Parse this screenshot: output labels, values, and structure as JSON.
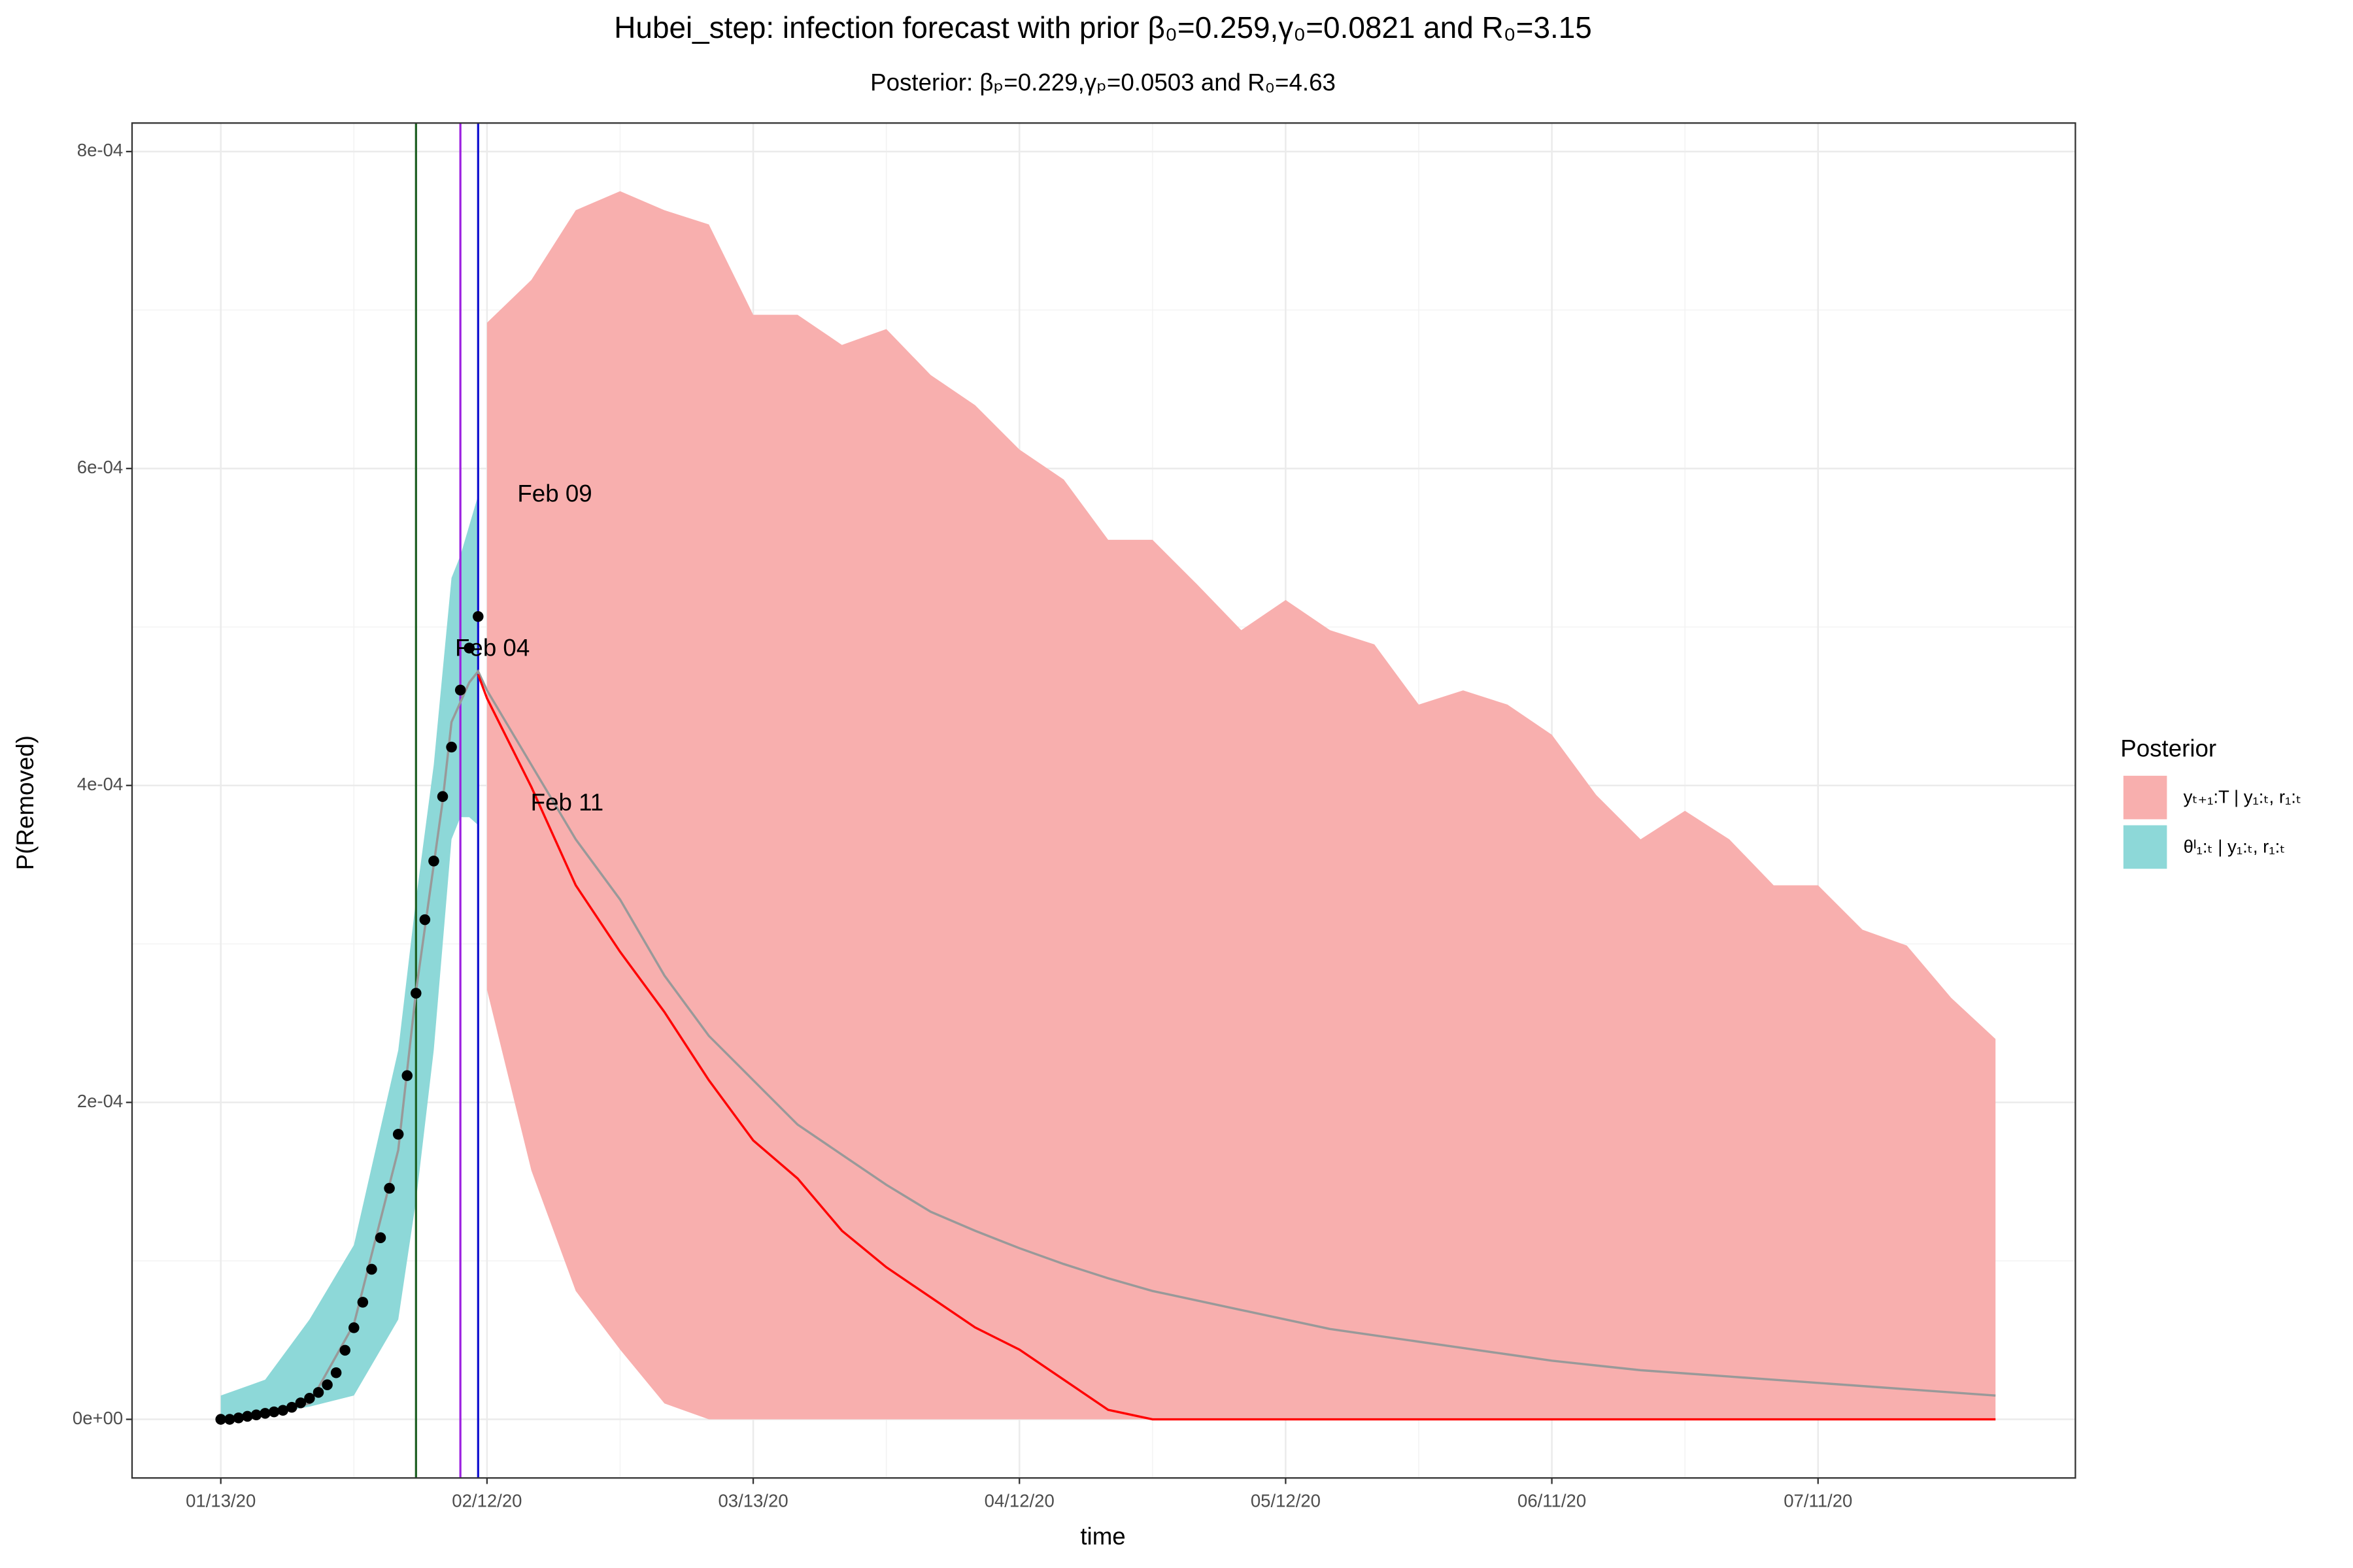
{
  "chart_data": {
    "type": "line",
    "title": "Hubei_step: infection forecast with prior β₀=0.259,γ₀=0.0821 and R₀=3.15",
    "subtitle": "Posterior: βₚ=0.229,γₚ=0.0503 and R₀=4.63",
    "xlabel": "time",
    "ylabel": "P(Removed)",
    "legend_title": "Posterior",
    "legend_position": "right",
    "grid": true,
    "xlim": [
      "2020-01-03",
      "2020-08-09"
    ],
    "ylim": [
      -3.7e-05,
      0.000818
    ],
    "xticks": [
      {
        "value": "2020-01-13",
        "label": "01/13/20"
      },
      {
        "value": "2020-02-12",
        "label": "02/12/20"
      },
      {
        "value": "2020-03-13",
        "label": "03/13/20"
      },
      {
        "value": "2020-04-12",
        "label": "04/12/20"
      },
      {
        "value": "2020-05-12",
        "label": "05/12/20"
      },
      {
        "value": "2020-06-11",
        "label": "06/11/20"
      },
      {
        "value": "2020-07-11",
        "label": "07/11/20"
      }
    ],
    "yticks": [
      {
        "value": 0,
        "label": "0e+00"
      },
      {
        "value": 0.0002,
        "label": "2e-04"
      },
      {
        "value": 0.0004,
        "label": "4e-04"
      },
      {
        "value": 0.0006,
        "label": "6e-04"
      },
      {
        "value": 0.0008,
        "label": "8e-04"
      }
    ],
    "vlines": [
      {
        "x": "2020-02-04",
        "label": "Feb 04",
        "color": "#1b5e20"
      },
      {
        "x": "2020-02-09",
        "label": "Feb 09",
        "color": "#9b1fe0"
      },
      {
        "x": "2020-02-11",
        "label": "Feb 11",
        "color": "#1010d0"
      }
    ],
    "series": [
      {
        "name": "yₜ₊₁:T | y₁:ₜ, r₁:ₜ",
        "kind": "ribbon",
        "color": "#F8AFAE",
        "x": [
          "2020-02-12",
          "2020-02-17",
          "2020-02-22",
          "2020-02-27",
          "2020-03-03",
          "2020-03-08",
          "2020-03-13",
          "2020-03-18",
          "2020-03-23",
          "2020-03-28",
          "2020-04-02",
          "2020-04-07",
          "2020-04-12",
          "2020-04-17",
          "2020-04-22",
          "2020-04-27",
          "2020-05-02",
          "2020-05-07",
          "2020-05-12",
          "2020-05-17",
          "2020-05-22",
          "2020-05-27",
          "2020-06-01",
          "2020-06-06",
          "2020-06-11",
          "2020-06-16",
          "2020-06-21",
          "2020-06-26",
          "2020-07-01",
          "2020-07-06",
          "2020-07-11",
          "2020-07-16",
          "2020-07-21",
          "2020-07-26",
          "2020-07-31"
        ],
        "lower": [
          0.000271,
          0.000157,
          8.1e-05,
          4.4e-05,
          1e-05,
          0,
          0,
          0,
          0,
          0,
          0,
          0,
          0,
          0,
          0,
          0,
          0,
          0,
          0,
          0,
          0,
          0,
          0,
          0,
          0,
          0,
          0,
          0,
          0,
          0,
          0,
          0,
          0,
          0,
          0
        ],
        "upper": [
          0.000692,
          0.000719,
          0.000763,
          0.000775,
          0.000763,
          0.000754,
          0.000697,
          0.000697,
          0.000678,
          0.000688,
          0.000659,
          0.00064,
          0.000612,
          0.000593,
          0.000555,
          0.000555,
          0.000527,
          0.000498,
          0.000517,
          0.000498,
          0.000489,
          0.000451,
          0.00046,
          0.000451,
          0.000432,
          0.000394,
          0.000366,
          0.000384,
          0.000366,
          0.000337,
          0.000337,
          0.000309,
          0.000299,
          0.000266,
          0.00024
        ]
      },
      {
        "name": "θᴵ₁:ₜ | y₁:ₜ, r₁:ₜ",
        "kind": "ribbon",
        "color": "#8DD8D8",
        "x": [
          "2020-01-13",
          "2020-01-18",
          "2020-01-23",
          "2020-01-28",
          "2020-02-02",
          "2020-02-04",
          "2020-02-06",
          "2020-02-08",
          "2020-02-09",
          "2020-02-10",
          "2020-02-11"
        ],
        "lower": [
          0,
          3e-06,
          8e-06,
          1.5e-05,
          6.3e-05,
          0.000138,
          0.000233,
          0.000366,
          0.00038,
          0.00038,
          0.000375
        ],
        "upper": [
          1.5e-05,
          2.5e-05,
          6.3e-05,
          0.00011,
          0.000233,
          0.000328,
          0.000413,
          0.000531,
          0.000545,
          0.000564,
          0.000583
        ]
      },
      {
        "kind": "line",
        "color": "#999999",
        "x": [
          "2020-01-13",
          "2020-01-18",
          "2020-01-23",
          "2020-01-28",
          "2020-02-02",
          "2020-02-04",
          "2020-02-07",
          "2020-02-08",
          "2020-02-10",
          "2020-02-11",
          "2020-02-12",
          "2020-02-17",
          "2020-02-22",
          "2020-02-27",
          "2020-03-03",
          "2020-03-08",
          "2020-03-13",
          "2020-03-18",
          "2020-03-23",
          "2020-03-28",
          "2020-04-02",
          "2020-04-07",
          "2020-04-12",
          "2020-04-17",
          "2020-04-22",
          "2020-04-27",
          "2020-05-02",
          "2020-05-07",
          "2020-05-12",
          "2020-05-17",
          "2020-05-22",
          "2020-05-27",
          "2020-06-01",
          "2020-06-06",
          "2020-06-11",
          "2020-06-16",
          "2020-06-21",
          "2020-06-26",
          "2020-07-01",
          "2020-07-06",
          "2020-07-11",
          "2020-07-16",
          "2020-07-21",
          "2020-07-26",
          "2020-07-31"
        ],
        "values": [
          0,
          3e-06,
          1e-05,
          6e-05,
          0.00017,
          0.00027,
          0.00039,
          0.00044,
          0.000465,
          0.000472,
          0.00046,
          0.000413,
          0.000366,
          0.000328,
          0.00028,
          0.000242,
          0.000214,
          0.000186,
          0.000167,
          0.000148,
          0.000131,
          0.000119,
          0.000108,
          9.8e-05,
          8.9e-05,
          8.1e-05,
          7.5e-05,
          6.9e-05,
          6.3e-05,
          5.7e-05,
          5.3e-05,
          4.9e-05,
          4.5e-05,
          4.1e-05,
          3.7e-05,
          3.4e-05,
          3.1e-05,
          2.9e-05,
          2.7e-05,
          2.5e-05,
          2.3e-05,
          2.1e-05,
          1.9e-05,
          1.7e-05,
          1.5e-05
        ]
      },
      {
        "kind": "line",
        "color": "#ff0000",
        "x": [
          "2020-02-11",
          "2020-02-12",
          "2020-02-17",
          "2020-02-22",
          "2020-02-27",
          "2020-03-03",
          "2020-03-08",
          "2020-03-13",
          "2020-03-18",
          "2020-03-23",
          "2020-03-28",
          "2020-04-02",
          "2020-04-07",
          "2020-04-12",
          "2020-04-17",
          "2020-04-22",
          "2020-04-27",
          "2020-05-02",
          "2020-05-07",
          "2020-05-12",
          "2020-05-17",
          "2020-05-22",
          "2020-05-27",
          "2020-06-01",
          "2020-06-06",
          "2020-06-11",
          "2020-06-16",
          "2020-06-21",
          "2020-06-26",
          "2020-07-01",
          "2020-07-06",
          "2020-07-11",
          "2020-07-16",
          "2020-07-21",
          "2020-07-26",
          "2020-07-31"
        ],
        "values": [
          0.00047,
          0.000455,
          0.000399,
          0.000337,
          0.000295,
          0.000257,
          0.000214,
          0.000176,
          0.000152,
          0.000119,
          9.6e-05,
          7.7e-05,
          5.8e-05,
          4.4e-05,
          2.5e-05,
          6e-06,
          0,
          0,
          0,
          0,
          0,
          0,
          0,
          0,
          0,
          0,
          0,
          0,
          0,
          0,
          0,
          0,
          0,
          0,
          0,
          0
        ]
      },
      {
        "kind": "points",
        "color": "#000000",
        "x": [
          "2020-01-13",
          "2020-01-14",
          "2020-01-15",
          "2020-01-16",
          "2020-01-17",
          "2020-01-18",
          "2020-01-19",
          "2020-01-20",
          "2020-01-21",
          "2020-01-22",
          "2020-01-23",
          "2020-01-24",
          "2020-01-25",
          "2020-01-26",
          "2020-01-27",
          "2020-01-28",
          "2020-01-29",
          "2020-01-30",
          "2020-01-31",
          "2020-02-01",
          "2020-02-02",
          "2020-02-03",
          "2020-02-04",
          "2020-02-05",
          "2020-02-06",
          "2020-02-07",
          "2020-02-08",
          "2020-02-09",
          "2020-02-10",
          "2020-02-11"
        ],
        "values": [
          0,
          0,
          9e-07,
          1.9e-06,
          2.8e-06,
          3.8e-06,
          4.7e-06,
          5.7e-06,
          7.6e-06,
          1.04e-05,
          1.33e-05,
          1.7e-05,
          2.18e-05,
          2.94e-05,
          4.36e-05,
          5.78e-05,
          7.39e-05,
          9.47e-05,
          0.0001146,
          0.0001458,
          0.0001799,
          0.0002169,
          0.0002689,
          0.0003153,
          0.0003523,
          0.000393,
          0.0004242,
          0.0004602,
          0.0004867,
          0.0005066
        ]
      }
    ]
  }
}
